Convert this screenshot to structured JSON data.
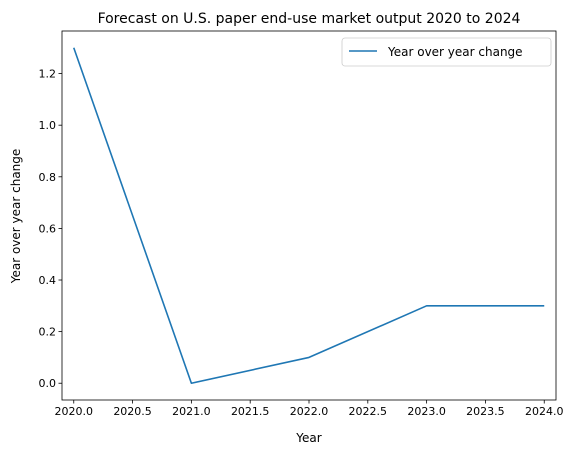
{
  "chart_data": {
    "type": "line",
    "title": "Forecast on U.S. paper end-use market output 2020 to 2024",
    "xlabel": "Year",
    "ylabel": "Year over year change",
    "x": [
      2020,
      2021,
      2022,
      2023,
      2024
    ],
    "series": [
      {
        "name": "Year over year change",
        "values": [
          1.3,
          0.0,
          0.1,
          0.3,
          0.3
        ],
        "color": "#1f77b4"
      }
    ],
    "xlim": [
      2019.9,
      2024.1
    ],
    "ylim": [
      -0.065,
      1.365
    ],
    "xticks": [
      2020.0,
      2020.5,
      2021.0,
      2021.5,
      2022.0,
      2022.5,
      2023.0,
      2023.5,
      2024.0
    ],
    "xtick_labels": [
      "2020.0",
      "2020.5",
      "2021.0",
      "2021.5",
      "2022.0",
      "2022.5",
      "2023.0",
      "2023.5",
      "2024.0"
    ],
    "yticks": [
      0.0,
      0.2,
      0.4,
      0.6,
      0.8,
      1.0,
      1.2
    ],
    "ytick_labels": [
      "0.0",
      "0.2",
      "0.4",
      "0.6",
      "0.8",
      "1.0",
      "1.2"
    ],
    "grid": false,
    "legend": "top-right"
  }
}
